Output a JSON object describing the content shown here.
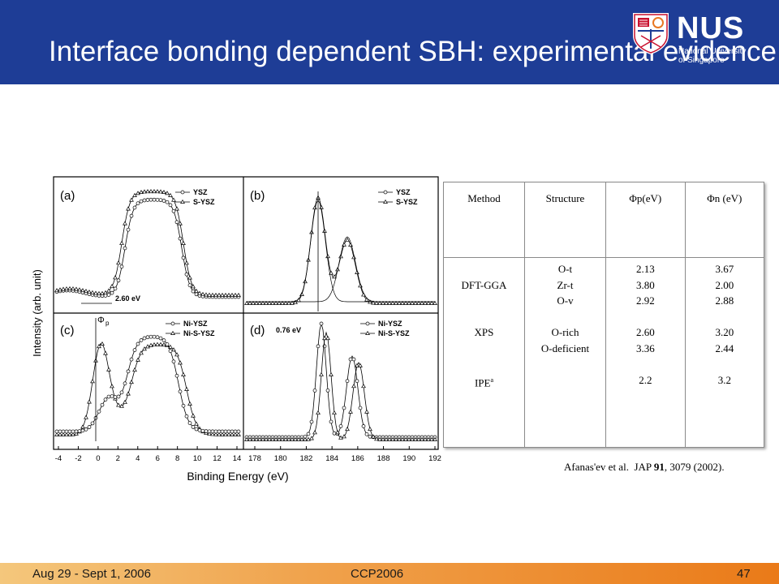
{
  "slide": {
    "title": "Interface bonding dependent SBH: experimental evidence (in-situ XPS)"
  },
  "logo": {
    "name": "NUS",
    "line1": "National University",
    "line2": "of Singapore"
  },
  "figure": {
    "ylabel": "Intensity (arb. unit)",
    "xlabel": "Binding Energy (eV)",
    "panels": [
      {
        "tag": "(a)",
        "legend": [
          "YSZ",
          "S-YSZ"
        ],
        "annotation": "2.60 eV",
        "x_ticks": [
          "-4",
          "-2",
          "0",
          "2",
          "4",
          "6",
          "8",
          "10",
          "12",
          "14"
        ]
      },
      {
        "tag": "(b)",
        "legend": [
          "YSZ",
          "S-YSZ"
        ]
      },
      {
        "tag": "(c)",
        "legend": [
          "Ni-YSZ",
          "Ni-S-YSZ"
        ],
        "annotation": "Φ",
        "annotation_sub": "p"
      },
      {
        "tag": "(d)",
        "legend": [
          "Ni-YSZ",
          "Ni-S-YSZ"
        ],
        "annotation": "0.76 eV",
        "x_ticks": [
          "178",
          "180",
          "182",
          "184",
          "186",
          "188",
          "190",
          "192"
        ]
      }
    ],
    "colors": {
      "line": "#000000",
      "background": "#ffffff"
    }
  },
  "table": {
    "headers": [
      "Method",
      "Structure",
      "Φp(eV)",
      "Φn (eV)"
    ],
    "col_method": [
      "DFT-GGA",
      "",
      "XPS",
      "",
      "IPE"
    ],
    "ipe_superscript": "a",
    "col_structure": [
      "O-t",
      "Zr-t",
      "O-v",
      "",
      "O-rich",
      "O-deficient"
    ],
    "col_phi_p": [
      "2.13",
      "3.80",
      "2.92",
      "",
      "2.60",
      "3.36",
      "",
      "2.2"
    ],
    "col_phi_n": [
      "3.67",
      "2.00",
      "2.88",
      "",
      "3.20",
      "2.44",
      "",
      "3.2"
    ]
  },
  "citation": {
    "authors": "Afanas'ev et al.",
    "journal": "JAP",
    "volume": "91",
    "rest": ", 3079 (2002)."
  },
  "footer": {
    "date": "Aug 29 - Sept 1, 2006",
    "conference": "CCP2006",
    "page": "47"
  },
  "theme": {
    "header_bg": "#1e3d96",
    "footer_gradient": [
      "#f4c77c",
      "#ea7a18"
    ]
  }
}
